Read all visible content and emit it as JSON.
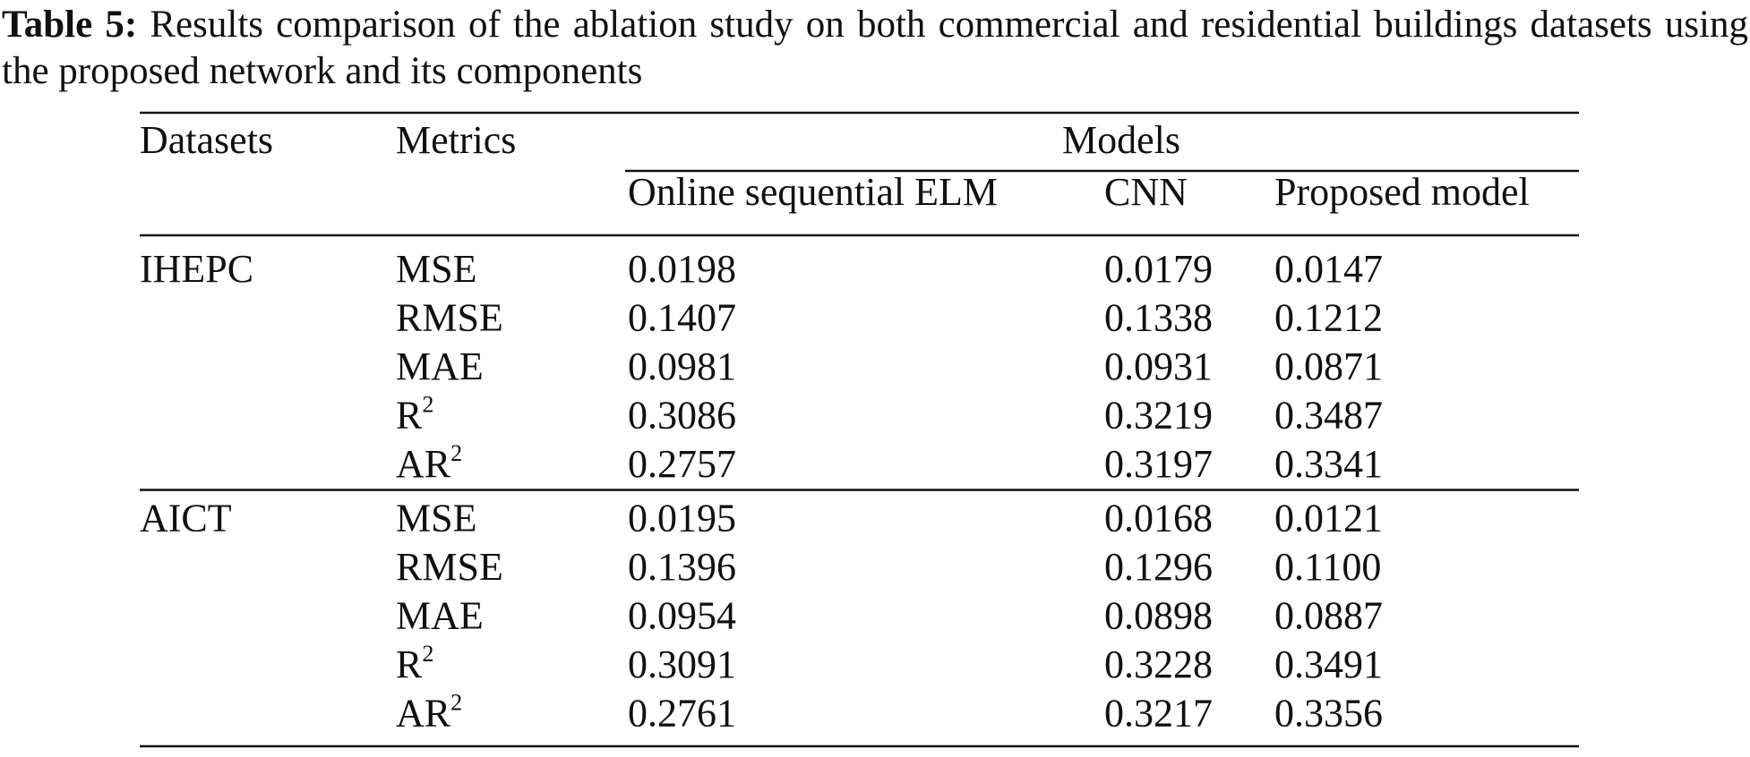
{
  "caption": {
    "label": "Table 5:",
    "text": "Results comparison of the ablation study on both commercial and residential buildings datasets using the proposed network and its components"
  },
  "table": {
    "headers": {
      "datasets": "Datasets",
      "metrics": "Metrics",
      "models": "Models"
    },
    "models": [
      "Online sequential ELM",
      "CNN",
      "Proposed model"
    ],
    "groups": [
      {
        "dataset": "IHEPC",
        "rows": [
          {
            "metric": "MSE",
            "values": [
              "0.0198",
              "0.0179",
              "0.0147"
            ]
          },
          {
            "metric": "RMSE",
            "values": [
              "0.1407",
              "0.1338",
              "0.1212"
            ]
          },
          {
            "metric": "MAE",
            "values": [
              "0.0981",
              "0.0931",
              "0.0871"
            ]
          },
          {
            "metric": "R",
            "sup": "2",
            "values": [
              "0.3086",
              "0.3219",
              "0.3487"
            ]
          },
          {
            "metric": "AR",
            "sup": "2",
            "values": [
              "0.2757",
              "0.3197",
              "0.3341"
            ]
          }
        ]
      },
      {
        "dataset": "AICT",
        "rows": [
          {
            "metric": "MSE",
            "values": [
              "0.0195",
              "0.0168",
              "0.0121"
            ]
          },
          {
            "metric": "RMSE",
            "values": [
              "0.1396",
              "0.1296",
              "0.1100"
            ]
          },
          {
            "metric": "MAE",
            "values": [
              "0.0954",
              "0.0898",
              "0.0887"
            ]
          },
          {
            "metric": "R",
            "sup": "2",
            "values": [
              "0.3091",
              "0.3228",
              "0.3491"
            ]
          },
          {
            "metric": "AR",
            "sup": "2",
            "values": [
              "0.2761",
              "0.3217",
              "0.3356"
            ]
          }
        ]
      }
    ]
  }
}
